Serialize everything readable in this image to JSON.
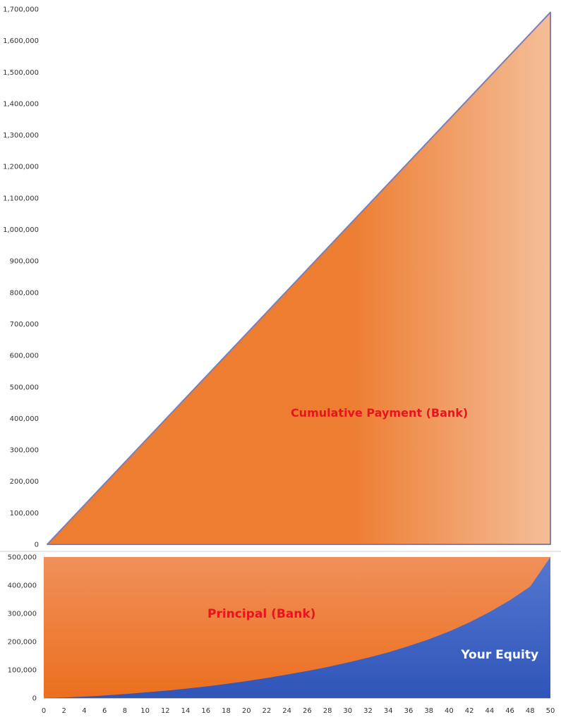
{
  "chart_data": [
    {
      "type": "area",
      "series": [
        {
          "x": [
            0,
            50
          ],
          "values": [
            0,
            1690000
          ]
        }
      ],
      "ylim": [
        0,
        1700000
      ],
      "xlim": [
        0,
        50
      ],
      "yticks": [
        "0",
        "100,000",
        "200,000",
        "300,000",
        "400,000",
        "500,000",
        "600,000",
        "700,000",
        "800,000",
        "900,000",
        "1,000,000",
        "1,100,000",
        "1,200,000",
        "1,300,000",
        "1,400,000",
        "1,500,000",
        "1,600,000",
        "1,700,000"
      ],
      "annotations": [
        {
          "text": "Cumulative Payment (Bank)",
          "x": 33,
          "y": 405000
        }
      ],
      "colors": {
        "fill_left": "#ED7D31",
        "fill_right": "#F4BE98",
        "edge": "#7B7FB8"
      },
      "grid": false
    },
    {
      "type": "area",
      "x": [
        0,
        2,
        4,
        6,
        8,
        10,
        12,
        14,
        16,
        18,
        20,
        22,
        24,
        26,
        28,
        30,
        32,
        34,
        36,
        38,
        40,
        42,
        44,
        46,
        48,
        50
      ],
      "series": [
        {
          "values": [
            500000,
            500000,
            500000,
            500000,
            500000,
            500000,
            500000,
            500000,
            500000,
            500000,
            500000,
            500000,
            500000,
            500000,
            500000,
            500000,
            500000,
            500000,
            500000,
            500000,
            500000,
            500000,
            500000,
            500000,
            500000,
            500000
          ]
        },
        {
          "values": [
            0,
            2000,
            5000,
            9000,
            14000,
            20000,
            26000,
            33000,
            41000,
            50000,
            60000,
            71000,
            83000,
            96000,
            110000,
            126000,
            143000,
            162000,
            184000,
            208000,
            236000,
            268000,
            305000,
            347000,
            395000,
            500000
          ]
        }
      ],
      "ylim": [
        0,
        500000
      ],
      "xlim": [
        0,
        50
      ],
      "yticks": [
        "0",
        "100,000",
        "200,000",
        "300,000",
        "400,000",
        "500,000"
      ],
      "xticks": [
        "0",
        "2",
        "4",
        "6",
        "8",
        "10",
        "12",
        "14",
        "16",
        "18",
        "20",
        "22",
        "24",
        "26",
        "28",
        "30",
        "32",
        "34",
        "36",
        "38",
        "40",
        "42",
        "44",
        "46",
        "48",
        "50"
      ],
      "annotations": [
        {
          "text": "Principal (Bank)",
          "x": 21.5,
          "y": 285000
        },
        {
          "text": "Your Equity",
          "x": 45,
          "y": 140000
        }
      ],
      "colors": {
        "principal": "#EE7A2F",
        "equity": "#3F66C4",
        "label_principal": "#E8141E",
        "label_equity": "#FFFFFF"
      },
      "grid": false
    }
  ],
  "colors": {
    "cumulative_label": "#E8141E"
  }
}
